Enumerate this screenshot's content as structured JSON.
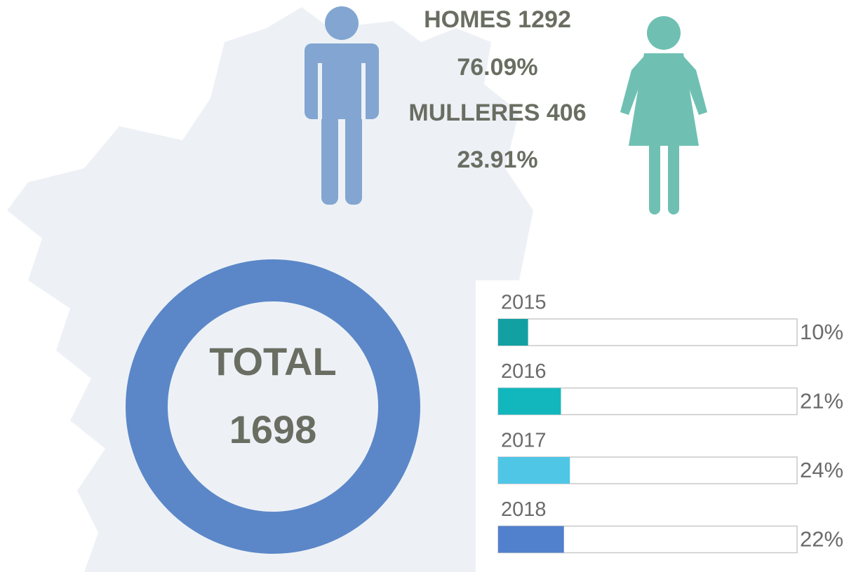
{
  "stats": {
    "men": {
      "label": "HOMES 1292",
      "percent": "76.09%"
    },
    "women": {
      "label": "MULLERES 406",
      "percent": "23.91%"
    }
  },
  "total": {
    "label": "TOTAL",
    "value": "1698"
  },
  "bars": {
    "xlim": [
      0,
      100
    ],
    "items": [
      {
        "year": "2015",
        "value": 10,
        "value_label": "10%",
        "color": "#12a0a2"
      },
      {
        "year": "2016",
        "value": 21,
        "value_label": "21%",
        "color": "#12b6bd"
      },
      {
        "year": "2017",
        "value": 24,
        "value_label": "24%",
        "color": "#4fc6e6"
      },
      {
        "year": "2018",
        "value": 22,
        "value_label": "22%",
        "color": "#5180cc"
      }
    ]
  }
}
